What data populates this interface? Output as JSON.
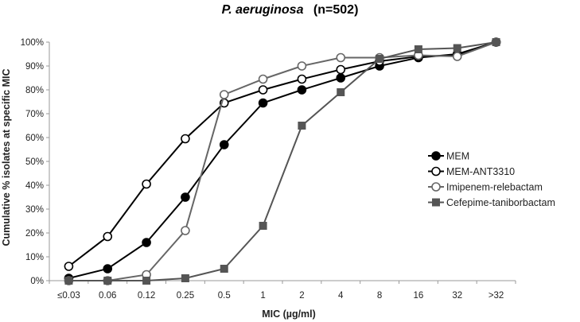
{
  "chart_data": {
    "type": "line",
    "title": {
      "organism": "P. aeruginosa",
      "count": "(n=502)"
    },
    "xlabel": "MIC (µg/ml)",
    "ylabel": "Cumulative % isolates at specific MIC",
    "ylim": [
      0,
      100
    ],
    "yticks": [
      "0%",
      "10%",
      "20%",
      "30%",
      "40%",
      "50%",
      "60%",
      "70%",
      "80%",
      "90%",
      "100%"
    ],
    "categories": [
      "≤0.03",
      "0.06",
      "0.12",
      "0.25",
      "0.5",
      "1",
      "2",
      "4",
      "8",
      "16",
      "32",
      ">32"
    ],
    "grid": false,
    "legend_position": "right",
    "series": [
      {
        "name": "MEM",
        "marker": "filled-circle",
        "color": "#000000",
        "values": [
          1,
          5,
          16,
          35,
          57,
          74.5,
          80,
          85,
          90,
          93.5,
          95,
          100
        ]
      },
      {
        "name": "MEM-ANT3310",
        "marker": "open-circle",
        "color": "#000000",
        "values": [
          6,
          18.5,
          40.5,
          59.5,
          74.5,
          80,
          84.5,
          88.5,
          92,
          94,
          94.5,
          100
        ]
      },
      {
        "name": "Imipenem-relebactam",
        "marker": "open-circle",
        "color": "#666666",
        "values": [
          0,
          0,
          2.5,
          21,
          78,
          84.5,
          90,
          93.5,
          93.5,
          94.5,
          94,
          100
        ]
      },
      {
        "name": "Cefepime-taniborbactam",
        "marker": "filled-square",
        "color": "#555555",
        "values": [
          0,
          0,
          0,
          1,
          5,
          23,
          65,
          79,
          93,
          97,
          97.5,
          100
        ]
      }
    ]
  }
}
